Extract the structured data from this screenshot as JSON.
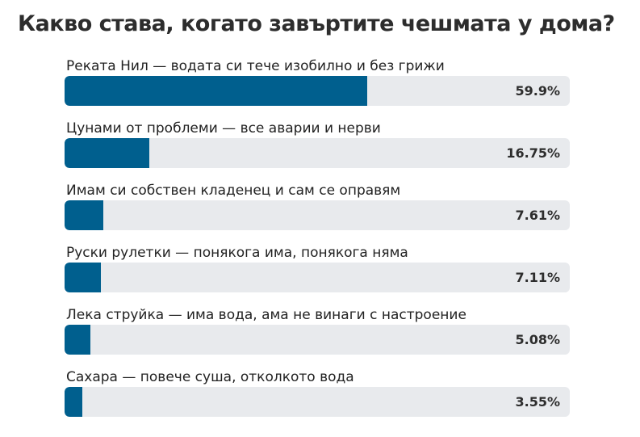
{
  "poll": {
    "title": "Какво става, когато завъртите чешмата у дома?"
  },
  "colors": {
    "bar_fill": "#005f8e",
    "bar_track": "#e8eaed",
    "text": "#2d2d2d"
  },
  "chart_data": {
    "type": "bar",
    "orientation": "horizontal",
    "title": "Какво става, когато завъртите чешмата у дома?",
    "categories": [
      "Реката Нил — водата си тече изобилно и без грижи",
      "Цунами от проблеми — все аварии и нерви",
      "Имам си собствен кладенец и сам се оправям",
      "Руски рулетки — понякога има, понякога няма",
      "Лека струйка — има вода, ама не винаги с настроение",
      "Сахара — повече суша, отколкото вода"
    ],
    "values": [
      59.9,
      16.75,
      7.61,
      7.11,
      5.08,
      3.55
    ],
    "value_labels": [
      "59.9%",
      "16.75%",
      "7.61%",
      "7.11%",
      "5.08%",
      "3.55%"
    ],
    "unit": "%",
    "xlim": [
      0,
      100
    ]
  }
}
